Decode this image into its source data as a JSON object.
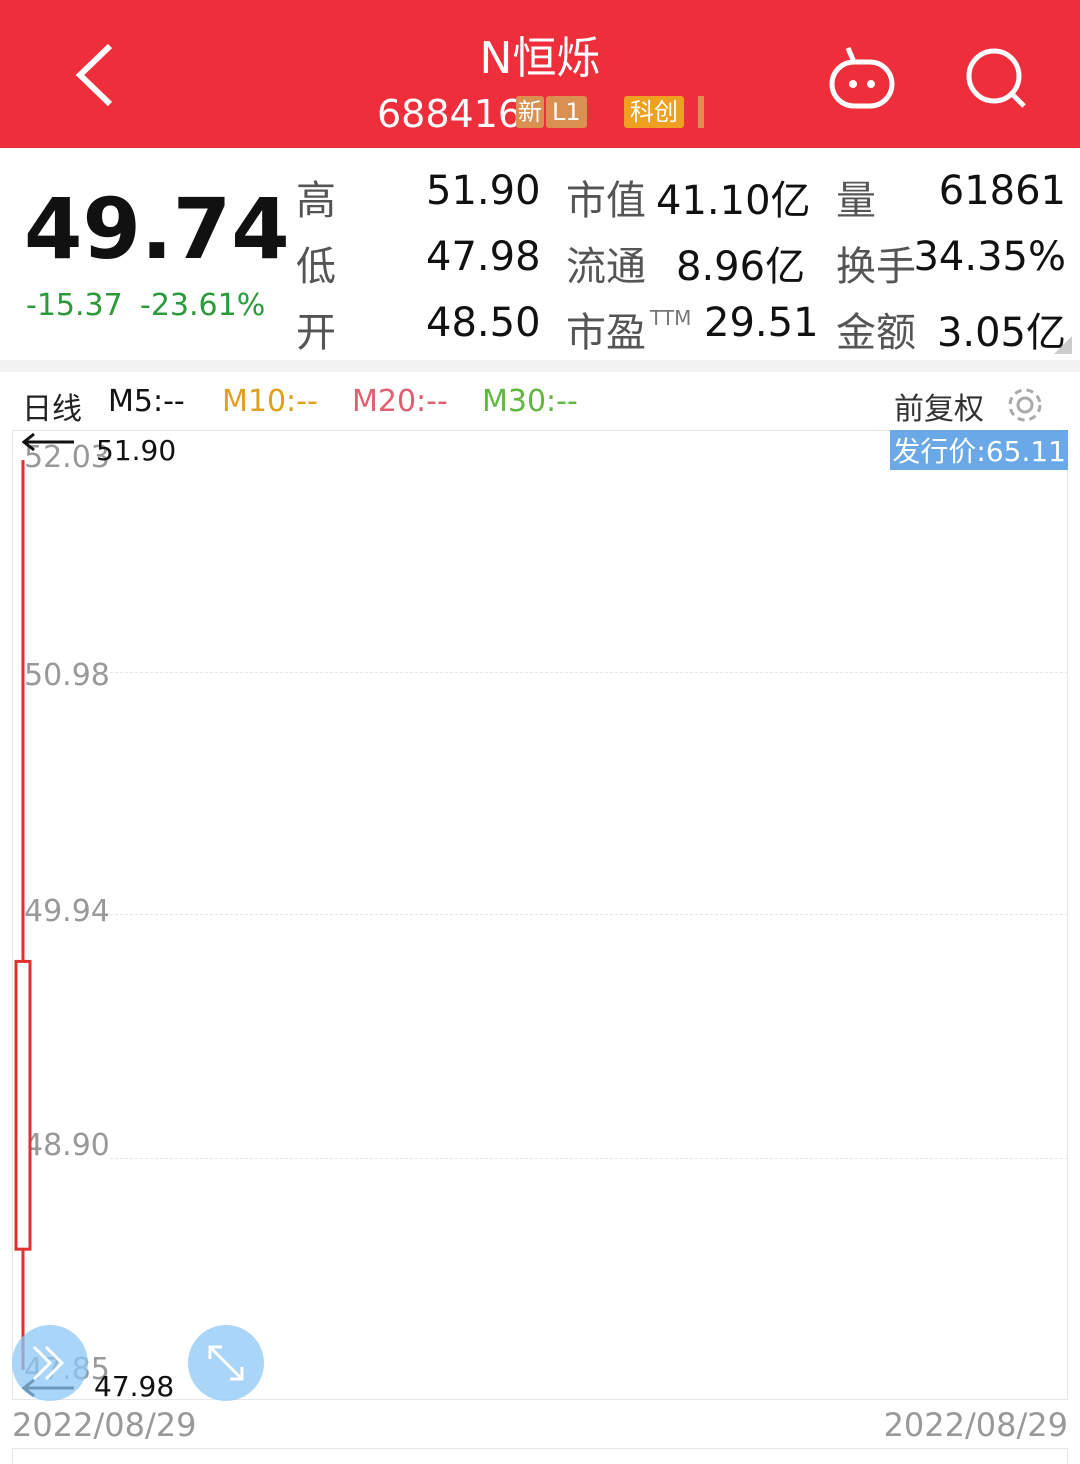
{
  "header": {
    "title": "N恒烁",
    "code": "688416",
    "tags": [
      "新",
      "L1",
      "科创"
    ],
    "color": "#ee2e3a"
  },
  "quote": {
    "price": "49.74",
    "change": "-15.37",
    "change_pct": "-23.61%",
    "rows": [
      {
        "l1": "高",
        "v1": "51.90",
        "l2": "市值",
        "v2": "41.10亿",
        "l3": "量",
        "v3": "61861"
      },
      {
        "l1": "低",
        "v1": "47.98",
        "l2": "流通",
        "v2": "8.96亿",
        "l3": "换手",
        "v3": "34.35%"
      },
      {
        "l1": "开",
        "v1": "48.50",
        "l2": "市盈",
        "sup": "TTM",
        "v2": "29.51",
        "l3": "金额",
        "v3": "3.05亿"
      }
    ]
  },
  "toolbar": {
    "period": "日线",
    "ma5": "M5:--",
    "ma10": "M10:--",
    "ma20": "M20:--",
    "ma30": "M30:--",
    "adjust": "前复权",
    "colors": {
      "ma10": "#e0a020",
      "ma20": "#e06070",
      "ma30": "#60b840"
    }
  },
  "chart_data": {
    "type": "candlestick",
    "x": [
      "2022/08/29"
    ],
    "candles": [
      {
        "date": "2022/08/29",
        "open": 48.5,
        "high": 51.9,
        "low": 47.98,
        "close": 49.74
      }
    ],
    "ylim": [
      47.85,
      52.03
    ],
    "yticks": [
      "52.03",
      "50.98",
      "49.94",
      "48.90",
      "47.85"
    ],
    "high_label": "51.90",
    "low_label": "47.98",
    "issue_price_label": "发行价:65.11",
    "x_start": "2022/08/29",
    "x_end": "2022/08/29",
    "grid": true,
    "up_color": "#e03030"
  }
}
